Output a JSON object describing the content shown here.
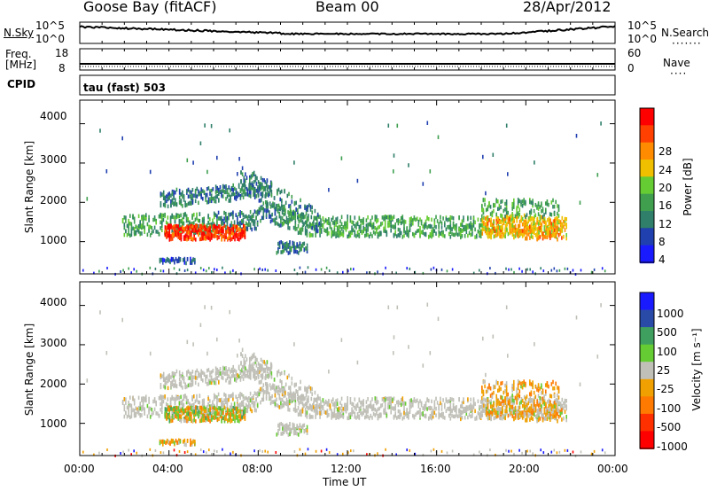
{
  "header": {
    "station": "Goose Bay (fitACF)",
    "beam": "Beam 00",
    "date": "28/Apr/2012"
  },
  "noise_panel": {
    "left_label": "N.Sky",
    "right_label": "N.Search",
    "left_ticks": [
      "10^5",
      "10^0"
    ],
    "right_ticks": [
      "10^5",
      "10^0"
    ]
  },
  "freq_panel": {
    "left_label_line1": "Freq.",
    "left_label_line2": "[MHz]",
    "right_label": "Nave",
    "left_ticks": [
      "18",
      "8"
    ],
    "right_ticks": [
      "60",
      "0"
    ]
  },
  "cpid_label": "CPID",
  "cpid_text": "tau (fast) 503",
  "colors": {
    "power_scale": [
      "#1a1aff",
      "#2040b0",
      "#2f7f6a",
      "#3f9f4f",
      "#66cc33",
      "#f0c000",
      "#ff8c00",
      "#ff4000",
      "#ff0000"
    ],
    "velocity_scale": [
      "#1a1aff",
      "#2a4aa8",
      "#3f9f5f",
      "#66cc33",
      "#c0c0b8",
      "#f0a000",
      "#ff7a00",
      "#ff3000",
      "#ff0000"
    ]
  },
  "chart_data": [
    {
      "type": "heatmap",
      "quantity": "Power",
      "xlabel": "",
      "ylabel": "Slant Range [km]",
      "y_ticks": [
        "1000",
        "2000",
        "3000",
        "4000"
      ],
      "y_range_km": [
        180,
        4600
      ],
      "x_range_hours": [
        0,
        24
      ],
      "colorbar_label": "Power [dB]",
      "colorbar_ticks": [
        "4",
        "8",
        "12",
        "16",
        "20",
        "24",
        "28"
      ],
      "colorbar_range": [
        0,
        30
      ]
    },
    {
      "type": "heatmap",
      "quantity": "Velocity",
      "xlabel": "Time UT",
      "ylabel": "Slant Range [km]",
      "x_ticks": [
        "00:00",
        "04:00",
        "08:00",
        "12:00",
        "16:00",
        "20:00",
        "00:00"
      ],
      "y_ticks": [
        "1000",
        "2000",
        "3000",
        "4000"
      ],
      "y_range_km": [
        180,
        4600
      ],
      "x_range_hours": [
        0,
        24
      ],
      "colorbar_label": "Velocity [m s⁻¹]",
      "colorbar_ticks": [
        "1000",
        "500",
        "100",
        "25",
        "-25",
        "-100",
        "-500",
        "-1000"
      ]
    }
  ]
}
